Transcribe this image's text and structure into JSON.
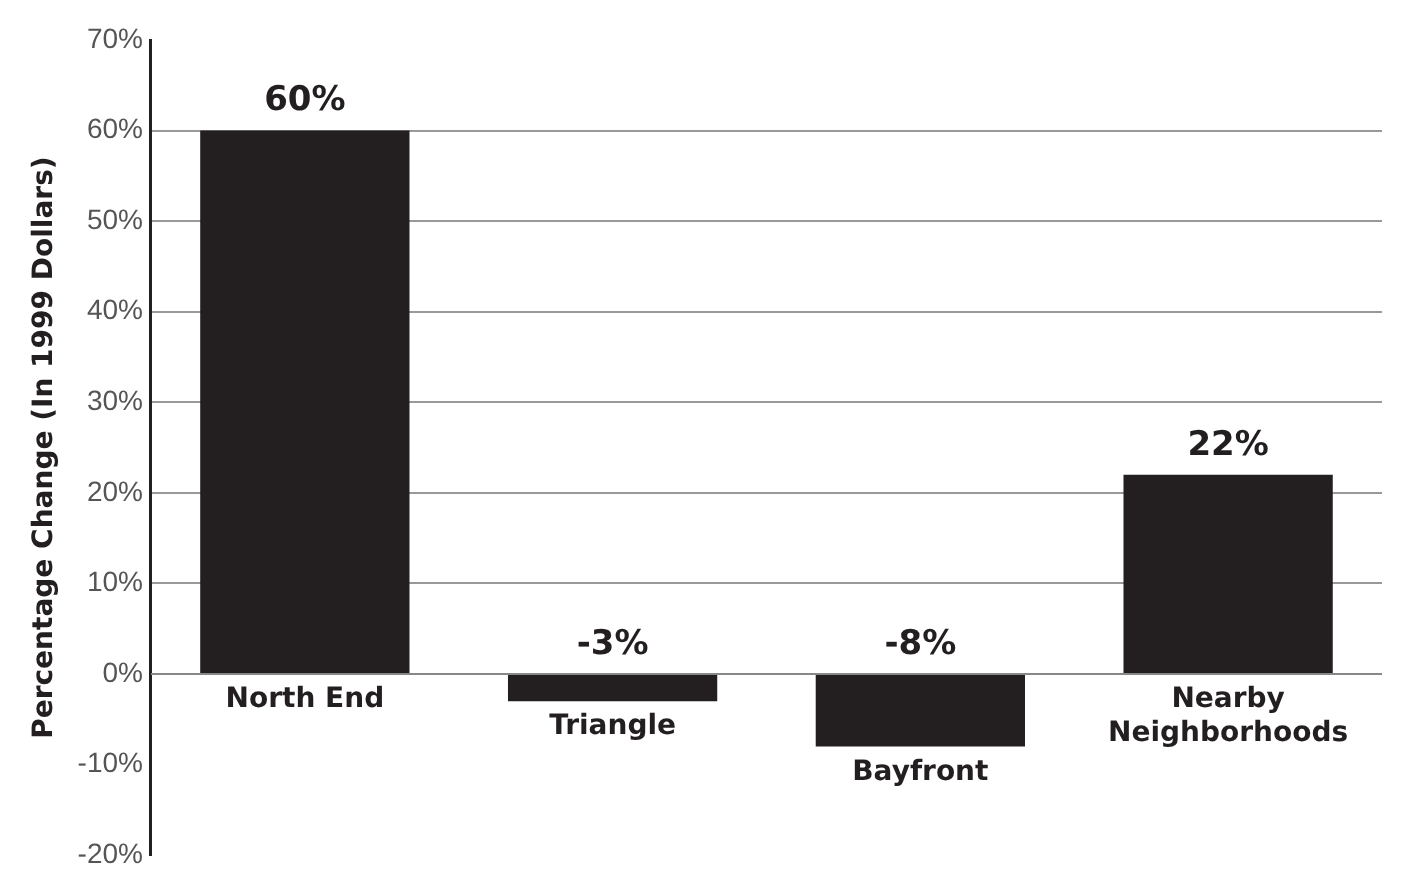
{
  "chart_data": {
    "type": "bar",
    "ylabel": "Percentage Change (In 1999 Dollars)",
    "categories": [
      "North End",
      "Triangle",
      "Bayfront",
      "Nearby Neighborhoods"
    ],
    "values": [
      60,
      -3,
      -8,
      22
    ],
    "color": "#231f20",
    "value_labels": [
      "60%",
      "-3%",
      "-8%",
      "22%"
    ],
    "ylim": [
      -20,
      70
    ],
    "yticks": [
      {
        "value": -20,
        "label": "-20%"
      },
      {
        "value": -10,
        "label": "-10%"
      },
      {
        "value": 0,
        "label": "0%"
      },
      {
        "value": 10,
        "label": "10%"
      },
      {
        "value": 20,
        "label": "20%"
      },
      {
        "value": 30,
        "label": "30%"
      },
      {
        "value": 40,
        "label": "40%"
      },
      {
        "value": 50,
        "label": "50%"
      },
      {
        "value": 60,
        "label": "60%"
      },
      {
        "value": 70,
        "label": "70%"
      }
    ],
    "grid": "y",
    "legend": false
  }
}
